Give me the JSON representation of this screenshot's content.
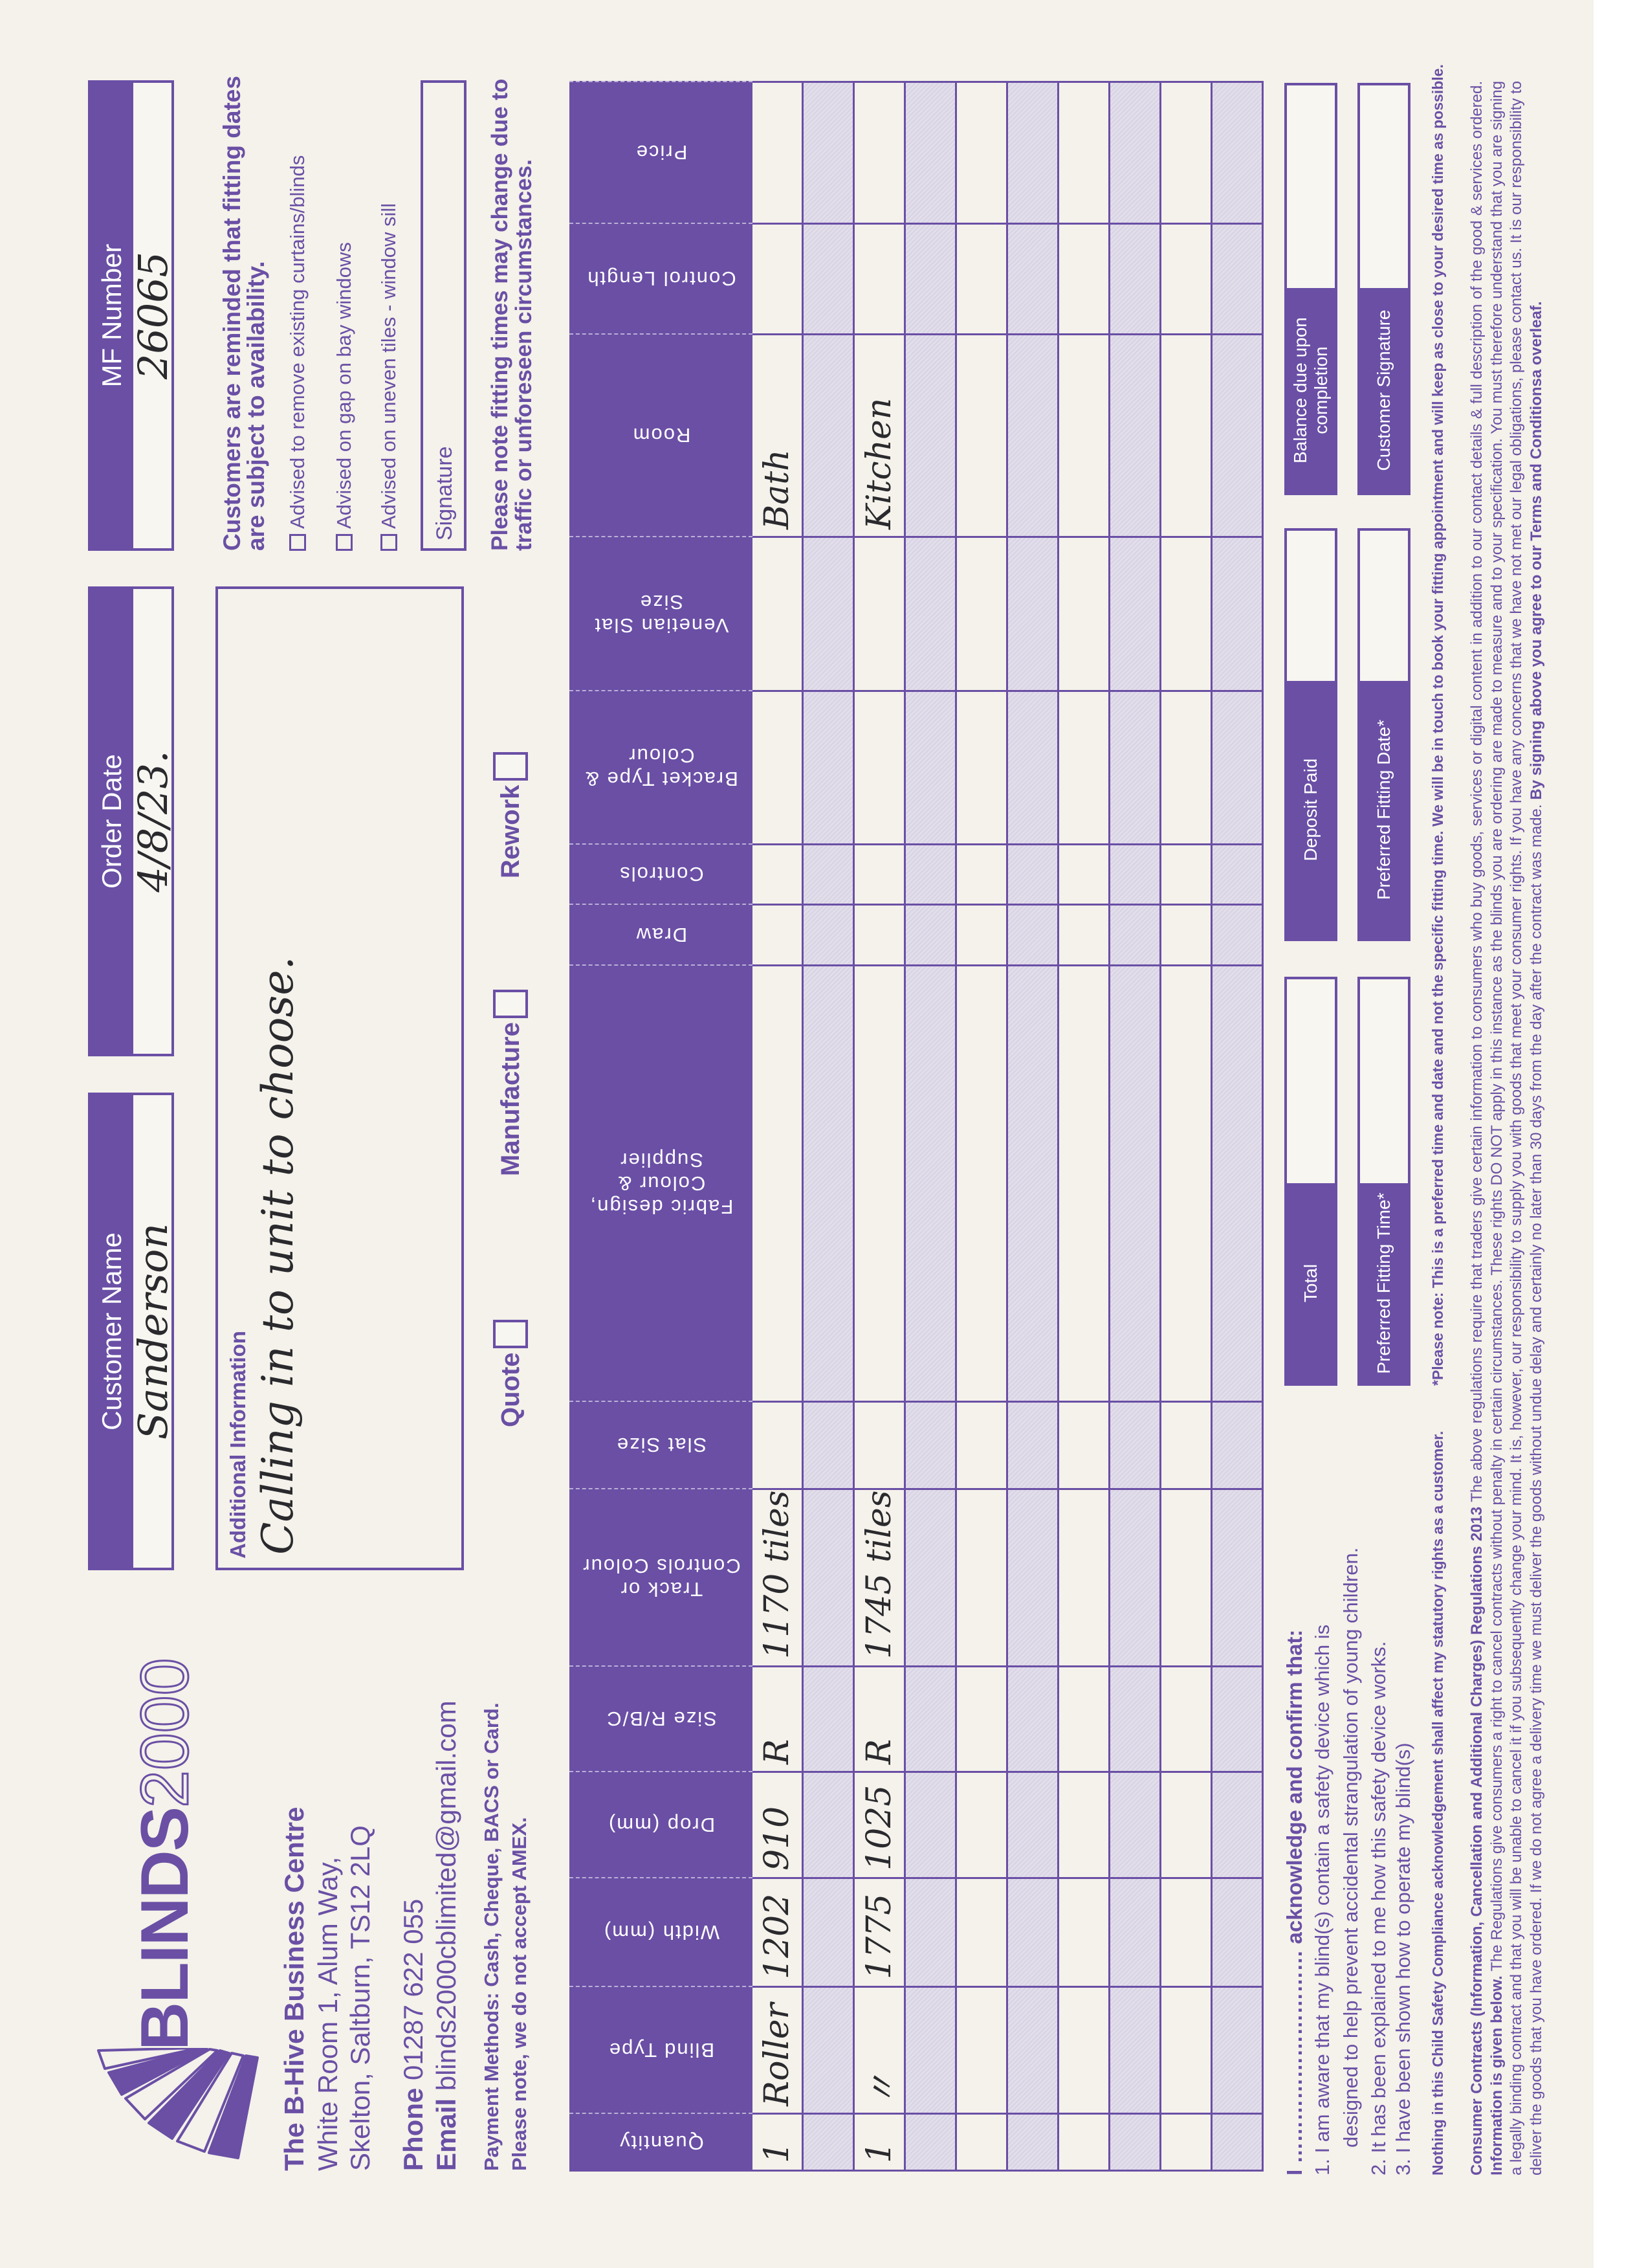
{
  "colors": {
    "brand_purple": "#6a4fa5",
    "paper": "#f4f2ea",
    "row_shade": "#e2deea",
    "ink": "#2a2a2e"
  },
  "brand": {
    "logo_icon": "fan-blinds-icon",
    "logo_bold": "BLINDS",
    "logo_outline": "2000"
  },
  "company": {
    "name": "The B-Hive Business Centre",
    "address_line1": "White Room 1, Alum Way,",
    "address_line2": "Skelton, Saltburn, TS12 2LQ",
    "phone_label": "Phone",
    "phone": "01287 622 055",
    "email_label": "Email",
    "email": "blinds2000cblimited@gmail.com",
    "payment_methods": "Payment Methods: Cash, Cheque, BACS or Card.",
    "payment_note": "Please note, we do not accept AMEX."
  },
  "header_fields": [
    {
      "label": "Customer Name",
      "value": "Sanderson"
    },
    {
      "label": "Order Date",
      "value": "4/8/23."
    },
    {
      "label": "MF Number",
      "value": "26065"
    }
  ],
  "additional_info": {
    "label": "Additional Information",
    "value": "Calling in to unit to choose."
  },
  "order_type": [
    {
      "label": "Quote",
      "checked": false
    },
    {
      "label": "Manufacture",
      "checked": false
    },
    {
      "label": "Rework",
      "checked": false
    }
  ],
  "notices": {
    "availability": "Customers are reminded that fitting dates are subject to availability.",
    "fitting_times": "Please note fitting times may change due to traffic or unforeseen circumstances."
  },
  "checklist": [
    {
      "label": "Advised to remove existing curtains/blinds",
      "checked": false
    },
    {
      "label": "Advised on gap on bay windows",
      "checked": false
    },
    {
      "label": "Advised on uneven tiles - window sill",
      "checked": false
    }
  ],
  "signature_label": "Signature",
  "table": {
    "columns": [
      "Quantity",
      "Blind Type",
      "Width (mm)",
      "Drop (mm)",
      "Size R/B/C",
      "Track or Controls Colour",
      "Slat Size",
      "Fabric design, Colour & Supplier",
      "Draw",
      "Controls",
      "Bracket Type & Colour",
      "Venetian Slat Size",
      "Room",
      "Control Length",
      "Price"
    ],
    "rows": [
      [
        "1",
        "Roller",
        "1202",
        "910",
        "R",
        "1170 tiles",
        "",
        "",
        "",
        "",
        "",
        "",
        "Bath",
        "",
        ""
      ],
      [
        "",
        "",
        "",
        "",
        "",
        "",
        "",
        "",
        "",
        "",
        "",
        "",
        "",
        "",
        ""
      ],
      [
        "1",
        "〃",
        "1775",
        "1025",
        "R",
        "1745 tiles",
        "",
        "",
        "",
        "",
        "",
        "",
        "Kitchen",
        "",
        ""
      ],
      [
        "",
        "",
        "",
        "",
        "",
        "",
        "",
        "",
        "",
        "",
        "",
        "",
        "",
        "",
        ""
      ],
      [
        "",
        "",
        "",
        "",
        "",
        "",
        "",
        "",
        "",
        "",
        "",
        "",
        "",
        "",
        ""
      ],
      [
        "",
        "",
        "",
        "",
        "",
        "",
        "",
        "",
        "",
        "",
        "",
        "",
        "",
        "",
        ""
      ],
      [
        "",
        "",
        "",
        "",
        "",
        "",
        "",
        "",
        "",
        "",
        "",
        "",
        "",
        "",
        ""
      ],
      [
        "",
        "",
        "",
        "",
        "",
        "",
        "",
        "",
        "",
        "",
        "",
        "",
        "",
        "",
        ""
      ],
      [
        "",
        "",
        "",
        "",
        "",
        "",
        "",
        "",
        "",
        "",
        "",
        "",
        "",
        "",
        ""
      ],
      [
        "",
        "",
        "",
        "",
        "",
        "",
        "",
        "",
        "",
        "",
        "",
        "",
        "",
        "",
        ""
      ]
    ]
  },
  "acknowledgement": {
    "heading": "I ………………………… acknowledge and confirm that:",
    "item1_line1": "1. I am aware that my blind(s) contain a safety device which is",
    "item1_line2": "designed to help prevent accidental strangulation of young children.",
    "item2": "2. It has been explained to me how this safety device works.",
    "item3": "3. I have been shown how to operate my blind(s)"
  },
  "summary_boxes": [
    {
      "label": "Total",
      "value": ""
    },
    {
      "label": "Deposit Paid",
      "value": ""
    },
    {
      "label": "Balance due upon completion",
      "value": ""
    },
    {
      "label": "Preferred Fitting Time*",
      "value": ""
    },
    {
      "label": "Preferred Fitting Date*",
      "value": ""
    },
    {
      "label": "Customer Signature",
      "value": ""
    }
  ],
  "footer": {
    "statutory": "Nothing in this Child Safety Compliance acknowledgement shall affect my statutory rights as a customer.",
    "preferred_note": "*Please note: This is a preferred time and date and not the specific fitting time. We will be in touch to book your fitting appointment and will keep as close to your desired time as possible.",
    "regs_title": "Consumer Contracts (Information, Cancellation and Additional Charges) Regulations 2013",
    "regs_text1": " The above regulations require that traders give certain information to consumers who buy goods, services or digital content in addition to our contact details & full description of the good & services ordered. ",
    "regs_info": "Information is given below.",
    "regs_text2": " The Regulations give consumers a right to cancel contracts without penalty in certain circumstances. These rights DO NOT apply in this instance as the blinds you are ordering are made to measure and to your specification. You must therefore understand that you are signing a legally binding contract and that you will be unable to cancel it if you subsequently change your mind. It is, however, our responsibility to supply you with goods that meet your consumer rights. If you have any concerns that we have not met our legal obligations, please contact us. It is our responsibility to deliver the goods that you have ordered. If we do not agree a delivery time we must deliver the goods without undue delay and certainly no later than 30 days from the day after the contract was made. ",
    "regs_agree": "By signing above you agree to our Terms and Conditionsa overleaf."
  }
}
